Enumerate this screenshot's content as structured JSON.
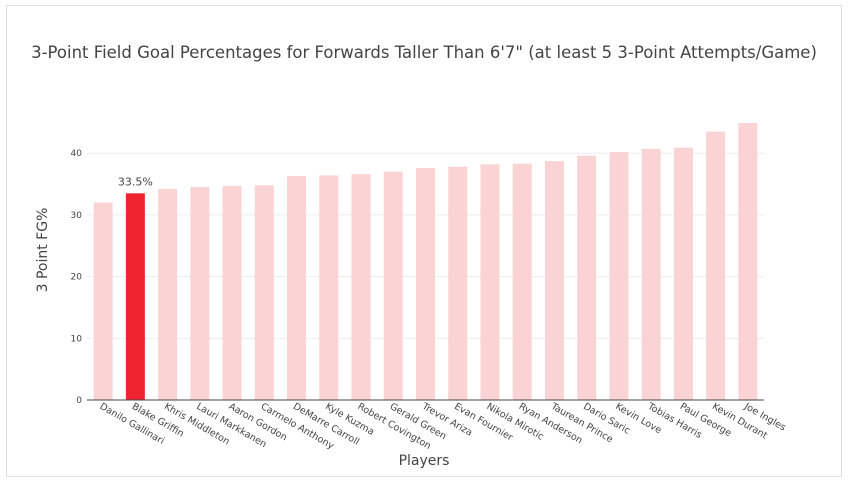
{
  "chart_data": {
    "type": "bar",
    "title": "3-Point Field Goal Percentages for Forwards Taller Than 6'7\" (at least 5 3-Point Attempts/Game)",
    "xlabel": "Players",
    "ylabel": "3 Point FG%",
    "ylim": [
      0,
      50
    ],
    "yticks": [
      0,
      10,
      20,
      30,
      40
    ],
    "grid": true,
    "categories": [
      "Danilo Gallinari",
      "Blake Griffin",
      "Khris Middleton",
      "Lauri Markkanen",
      "Aaron Gordon",
      "Carmelo Anthony",
      "DeMarre Carroll",
      "Kyle Kuzma",
      "Robert Covington",
      "Gerald Green",
      "Trevor Ariza",
      "Evan Fournier",
      "Nikola Mirotic",
      "Ryan Anderson",
      "Taurean Prince",
      "Dario Saric",
      "Kevin Love",
      "Tobias Harris",
      "Paul George",
      "Kevin Durant",
      "Joe Ingles"
    ],
    "values": [
      32.0,
      33.5,
      34.2,
      34.5,
      34.7,
      34.8,
      36.3,
      36.4,
      36.6,
      37.0,
      37.6,
      37.8,
      38.2,
      38.3,
      38.7,
      39.6,
      40.2,
      40.7,
      40.9,
      43.5,
      44.9
    ],
    "highlight_index": 1,
    "highlight_label": "33.5%",
    "colors": {
      "bar": "#fad3d5",
      "highlight": "#ef2430"
    }
  }
}
